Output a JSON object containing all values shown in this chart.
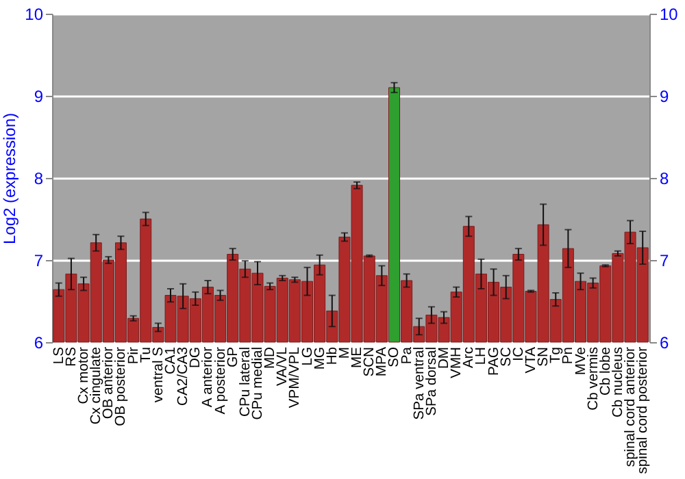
{
  "chart_data": {
    "type": "bar",
    "ylabel": "Log2 (expression)",
    "categories": [
      "LS",
      "RS",
      "Cx motor",
      "Cx cingulate",
      "OB anterior",
      "OB posterior",
      "Pir",
      "Tu",
      "ventral S",
      "CA1",
      "CA2/CA3",
      "DG",
      "A anterior",
      "A posterior",
      "GP",
      "CPu lateral",
      "CPu medial",
      "MD",
      "VA/VL",
      "VPM/VPL",
      "LG",
      "MG",
      "Hb",
      "M",
      "ME",
      "SCN",
      "MPA",
      "SO",
      "Pa",
      "SPa ventral",
      "SPa dorsal",
      "DM",
      "VMH",
      "Arc",
      "LH",
      "PAG",
      "SC",
      "IC",
      "VTA",
      "SN",
      "Tg",
      "Pn",
      "MVe",
      "Cb vermis",
      "Cb lobe",
      "Cb nucleus",
      "spinal cord anterior",
      "spinal cord posterior"
    ],
    "values": [
      6.64,
      6.83,
      6.71,
      7.21,
      7.0,
      7.21,
      6.29,
      7.5,
      6.18,
      6.57,
      6.56,
      6.53,
      6.67,
      6.57,
      7.07,
      6.89,
      6.84,
      6.68,
      6.78,
      6.76,
      6.74,
      6.94,
      6.38,
      7.28,
      7.91,
      7.05,
      6.81,
      9.1,
      6.75,
      6.19,
      6.33,
      6.3,
      6.61,
      7.41,
      6.83,
      6.73,
      6.67,
      7.07,
      6.62,
      7.43,
      6.52,
      7.14,
      6.74,
      6.72,
      6.93,
      7.08,
      7.34,
      7.15
    ],
    "errors": [
      0.08,
      0.19,
      0.08,
      0.1,
      0.04,
      0.08,
      0.03,
      0.08,
      0.05,
      0.08,
      0.15,
      0.08,
      0.08,
      0.06,
      0.07,
      0.1,
      0.14,
      0.04,
      0.03,
      0.03,
      0.17,
      0.12,
      0.19,
      0.05,
      0.04,
      0.01,
      0.12,
      0.06,
      0.08,
      0.1,
      0.1,
      0.07,
      0.06,
      0.12,
      0.18,
      0.16,
      0.14,
      0.07,
      0.01,
      0.25,
      0.08,
      0.23,
      0.1,
      0.06,
      0.01,
      0.03,
      0.14,
      0.2
    ],
    "colors": [
      "#b02a2a",
      "#b02a2a",
      "#b02a2a",
      "#b02a2a",
      "#b02a2a",
      "#b02a2a",
      "#b02a2a",
      "#b02a2a",
      "#b02a2a",
      "#b02a2a",
      "#b02a2a",
      "#b02a2a",
      "#b02a2a",
      "#b02a2a",
      "#b02a2a",
      "#b02a2a",
      "#b02a2a",
      "#b02a2a",
      "#b02a2a",
      "#b02a2a",
      "#b02a2a",
      "#b02a2a",
      "#b02a2a",
      "#b02a2a",
      "#b02a2a",
      "#b02a2a",
      "#b02a2a",
      "#2fa02f",
      "#b02a2a",
      "#b02a2a",
      "#b02a2a",
      "#b02a2a",
      "#b02a2a",
      "#b02a2a",
      "#b02a2a",
      "#b02a2a",
      "#b02a2a",
      "#b02a2a",
      "#b02a2a",
      "#b02a2a",
      "#b02a2a",
      "#b02a2a",
      "#b02a2a",
      "#b02a2a",
      "#b02a2a",
      "#b02a2a",
      "#b02a2a",
      "#b02a2a"
    ],
    "ylim": [
      6,
      10
    ],
    "yticks": [
      6,
      7,
      8,
      9,
      10
    ],
    "y2lim": [
      6,
      10
    ],
    "y2ticks": [
      6,
      7,
      8,
      9,
      10
    ],
    "grid": "y"
  }
}
